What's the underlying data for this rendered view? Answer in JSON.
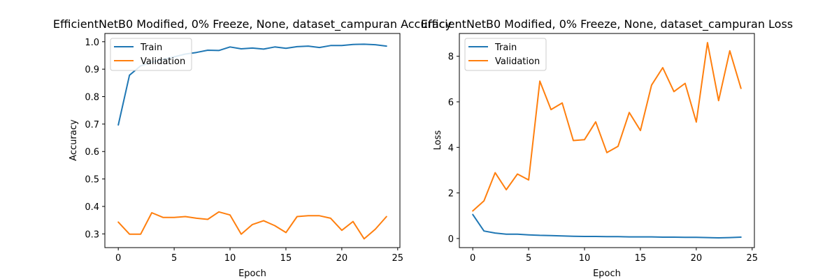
{
  "chart_data": [
    {
      "type": "line",
      "title": "EfficientNetB0 Modified, 0% Freeze, None, dataset_campuran Accuracy",
      "xlabel": "Epoch",
      "ylabel": "Accuracy",
      "xlim": [
        -1.2,
        25.2
      ],
      "ylim": [
        0.25,
        1.03
      ],
      "xticks": [
        0,
        5,
        10,
        15,
        20,
        25
      ],
      "yticks": [
        0.3,
        0.4,
        0.5,
        0.6,
        0.7,
        0.8,
        0.9,
        1.0
      ],
      "ytick_labels": [
        "0.3",
        "0.4",
        "0.5",
        "0.6",
        "0.7",
        "0.8",
        "0.9",
        "1.0"
      ],
      "legend_position": "top-left",
      "x": [
        0,
        1,
        2,
        3,
        4,
        5,
        6,
        7,
        8,
        9,
        10,
        11,
        12,
        13,
        14,
        15,
        16,
        17,
        18,
        19,
        20,
        21,
        22,
        23,
        24
      ],
      "series": [
        {
          "name": "Train",
          "color": "#1f77b4",
          "values": [
            0.697,
            0.878,
            0.912,
            0.925,
            0.935,
            0.945,
            0.955,
            0.961,
            0.969,
            0.968,
            0.981,
            0.974,
            0.977,
            0.973,
            0.981,
            0.976,
            0.982,
            0.984,
            0.979,
            0.986,
            0.986,
            0.99,
            0.991,
            0.989,
            0.984
          ]
        },
        {
          "name": "Validation",
          "color": "#ff7f0e",
          "values": [
            0.343,
            0.299,
            0.299,
            0.377,
            0.36,
            0.36,
            0.363,
            0.357,
            0.353,
            0.38,
            0.369,
            0.299,
            0.334,
            0.348,
            0.33,
            0.305,
            0.363,
            0.366,
            0.366,
            0.357,
            0.313,
            0.345,
            0.282,
            0.317,
            0.363
          ]
        }
      ]
    },
    {
      "type": "line",
      "title": "EfficientNetB0 Modified, 0% Freeze, None, dataset_campuran Loss",
      "xlabel": "Epoch",
      "ylabel": "Loss",
      "xlim": [
        -1.2,
        25.2
      ],
      "ylim": [
        -0.4,
        9.0
      ],
      "xticks": [
        0,
        5,
        10,
        15,
        20,
        25
      ],
      "yticks": [
        0,
        2,
        4,
        6,
        8
      ],
      "ytick_labels": [
        "0",
        "2",
        "4",
        "6",
        "8"
      ],
      "legend_position": "top-left",
      "x": [
        0,
        1,
        2,
        3,
        4,
        5,
        6,
        7,
        8,
        9,
        10,
        11,
        12,
        13,
        14,
        15,
        16,
        17,
        18,
        19,
        20,
        21,
        22,
        23,
        24
      ],
      "series": [
        {
          "name": "Train",
          "color": "#1f77b4",
          "values": [
            1.05,
            0.33,
            0.24,
            0.19,
            0.19,
            0.16,
            0.14,
            0.13,
            0.11,
            0.1,
            0.09,
            0.09,
            0.08,
            0.08,
            0.07,
            0.07,
            0.07,
            0.06,
            0.06,
            0.05,
            0.05,
            0.04,
            0.03,
            0.04,
            0.06
          ]
        },
        {
          "name": "Validation",
          "color": "#ff7f0e",
          "values": [
            1.21,
            1.65,
            2.89,
            2.14,
            2.83,
            2.57,
            6.91,
            5.66,
            5.95,
            4.3,
            4.34,
            5.12,
            3.77,
            4.05,
            5.53,
            4.74,
            6.73,
            7.5,
            6.45,
            6.81,
            5.11,
            8.6,
            6.05,
            8.24,
            6.59
          ]
        }
      ]
    }
  ]
}
